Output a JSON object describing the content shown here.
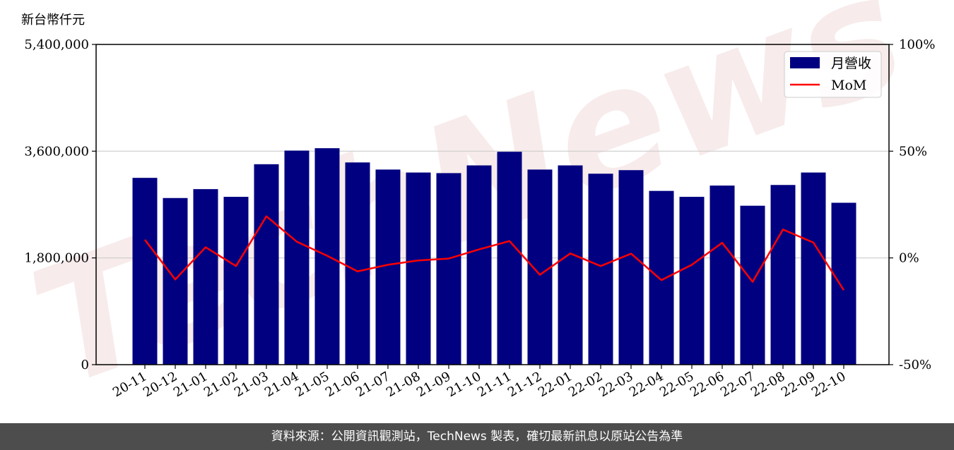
{
  "colors": {
    "bar": "#000080",
    "line": "#ff0000",
    "grid": "#cccccc",
    "watermark": "#f2dcdc",
    "footer_bg": "#4d4d4d"
  },
  "watermark_text": "TechNews",
  "footer": {
    "text": "資料來源：公開資訊觀測站，TechNews 製表，確切最新訊息以原站公告為準"
  },
  "chart_data": {
    "type": "bar",
    "title": "",
    "ylabel": "新台幣仟元",
    "xlabel": "",
    "categories": [
      "20-11",
      "20-12",
      "21-01",
      "21-02",
      "21-03",
      "21-04",
      "21-05",
      "21-06",
      "21-07",
      "21-08",
      "21-09",
      "21-10",
      "21-11",
      "21-12",
      "22-01",
      "22-02",
      "22-03",
      "22-04",
      "22-05",
      "22-06",
      "22-07",
      "22-08",
      "22-09",
      "22-10"
    ],
    "series": [
      {
        "name": "月營收",
        "type": "bar",
        "axis": "left",
        "values": [
          3150000,
          2810000,
          2960000,
          2830000,
          3380000,
          3610000,
          3650000,
          3410000,
          3290000,
          3240000,
          3230000,
          3360000,
          3590000,
          3290000,
          3360000,
          3220000,
          3280000,
          2930000,
          2830000,
          3020000,
          2680000,
          3030000,
          3240000,
          2730000
        ]
      },
      {
        "name": "MoM",
        "type": "line",
        "axis": "right",
        "values": [
          8.5,
          -10.1,
          5.0,
          -3.8,
          19.5,
          7.6,
          1.0,
          -6.3,
          -3.2,
          -1.2,
          -0.3,
          4.0,
          7.9,
          -7.9,
          2.1,
          -3.8,
          2.0,
          -10.4,
          -3.2,
          7.1,
          -11.2,
          13.3,
          7.2,
          -15.1
        ]
      }
    ],
    "ylim": [
      0,
      5400000
    ],
    "y_ticks": [
      "0",
      "1,800,000",
      "3,600,000",
      "5,400,000"
    ],
    "y2lim": [
      -50,
      100
    ],
    "y2_ticks": [
      "-50%",
      "0%",
      "50%",
      "100%"
    ],
    "grid": "horizontal",
    "legend": "top-right"
  }
}
